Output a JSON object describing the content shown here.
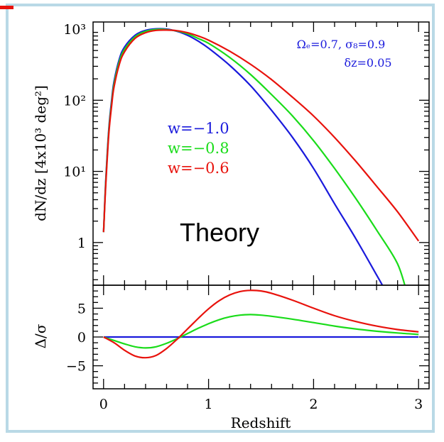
{
  "chart_data": [
    {
      "type": "line",
      "panel": "top",
      "xlabel": "",
      "ylabel": "dN/dz [4x10³ deg²]",
      "xlim": [
        -0.1,
        3.1
      ],
      "ylim_log10": [
        -0.6,
        3.1
      ],
      "yscale": "log",
      "y_ticks": [
        {
          "label": "10³",
          "value": 1000
        },
        {
          "label": "10²",
          "value": 100
        },
        {
          "label": "10¹",
          "value": 10
        },
        {
          "label": "1",
          "value": 1
        }
      ],
      "annotations": [
        "Ωₑ=0.7,  σ₈=0.9",
        "δz=0.05",
        "Theory"
      ],
      "series": [
        {
          "name": "w=−1.0",
          "color": "#1a1adc",
          "x": [
            0.0,
            0.02,
            0.05,
            0.08,
            0.1,
            0.15,
            0.2,
            0.3,
            0.4,
            0.5,
            0.6,
            0.7,
            0.8,
            0.9,
            1.0,
            1.2,
            1.4,
            1.6,
            1.8,
            2.0,
            2.2,
            2.4,
            2.6,
            2.72
          ],
          "y": [
            1.4,
            7,
            40,
            110,
            185,
            380,
            560,
            820,
            960,
            1010,
            1000,
            930,
            820,
            680,
            540,
            310,
            160,
            72,
            30,
            11,
            3.5,
            1.15,
            0.35,
            0.17
          ]
        },
        {
          "name": "w=−0.8",
          "color": "#1adc1a",
          "x": [
            0.0,
            0.02,
            0.05,
            0.08,
            0.1,
            0.15,
            0.2,
            0.3,
            0.4,
            0.5,
            0.6,
            0.7,
            0.8,
            0.9,
            1.0,
            1.2,
            1.4,
            1.6,
            1.8,
            2.0,
            2.2,
            2.4,
            2.6,
            2.8,
            2.9
          ],
          "y": [
            1.4,
            6.5,
            37,
            100,
            170,
            350,
            520,
            780,
            930,
            990,
            985,
            940,
            860,
            740,
            630,
            400,
            230,
            120,
            60,
            27,
            11,
            4.2,
            1.5,
            0.5,
            0.17
          ]
        },
        {
          "name": "w=−0.6",
          "color": "#e8120c",
          "x": [
            0.0,
            0.02,
            0.05,
            0.08,
            0.1,
            0.15,
            0.2,
            0.3,
            0.4,
            0.5,
            0.6,
            0.7,
            0.8,
            0.9,
            1.0,
            1.2,
            1.4,
            1.6,
            1.8,
            2.0,
            2.2,
            2.4,
            2.6,
            2.8,
            3.0
          ],
          "y": [
            1.4,
            6,
            34,
            92,
            155,
            320,
            480,
            740,
            890,
            960,
            970,
            950,
            890,
            800,
            700,
            490,
            320,
            195,
            110,
            60,
            30,
            14,
            6.2,
            2.7,
            1.05
          ]
        }
      ]
    },
    {
      "type": "line",
      "panel": "bottom",
      "xlabel": "Redshift",
      "ylabel": "Δ/σ",
      "xlim": [
        -0.1,
        3.1
      ],
      "ylim": [
        -9,
        9
      ],
      "x_ticks": [
        "0",
        "1",
        "2",
        "3"
      ],
      "y_ticks": [
        "5",
        "0",
        "−5"
      ],
      "series": [
        {
          "name": "w=−1.0",
          "color": "#1a1adc",
          "x": [
            0.0,
            3.0
          ],
          "y": [
            0,
            0
          ]
        },
        {
          "name": "w=−0.8",
          "color": "#1adc1a",
          "x": [
            0.0,
            0.1,
            0.2,
            0.3,
            0.4,
            0.5,
            0.6,
            0.7,
            0.8,
            0.9,
            1.0,
            1.1,
            1.2,
            1.3,
            1.4,
            1.5,
            1.6,
            1.8,
            2.0,
            2.2,
            2.4,
            2.6,
            2.8,
            3.0
          ],
          "y": [
            0,
            -0.6,
            -1.2,
            -1.7,
            -1.9,
            -1.7,
            -1.1,
            -0.3,
            0.6,
            1.5,
            2.3,
            3.0,
            3.5,
            3.8,
            3.9,
            3.8,
            3.6,
            3.1,
            2.5,
            1.9,
            1.4,
            1.0,
            0.7,
            0.45
          ]
        },
        {
          "name": "w=−0.6",
          "color": "#e8120c",
          "x": [
            0.0,
            0.1,
            0.2,
            0.3,
            0.4,
            0.5,
            0.6,
            0.7,
            0.8,
            0.9,
            1.0,
            1.1,
            1.2,
            1.3,
            1.4,
            1.5,
            1.6,
            1.8,
            2.0,
            2.2,
            2.4,
            2.6,
            2.8,
            3.0
          ],
          "y": [
            0,
            -1.0,
            -2.3,
            -3.3,
            -3.6,
            -3.2,
            -2.0,
            -0.4,
            1.4,
            3.2,
            4.9,
            6.3,
            7.3,
            7.9,
            8.1,
            8.0,
            7.6,
            6.4,
            5.0,
            3.7,
            2.7,
            1.9,
            1.3,
            0.9
          ]
        }
      ]
    }
  ]
}
